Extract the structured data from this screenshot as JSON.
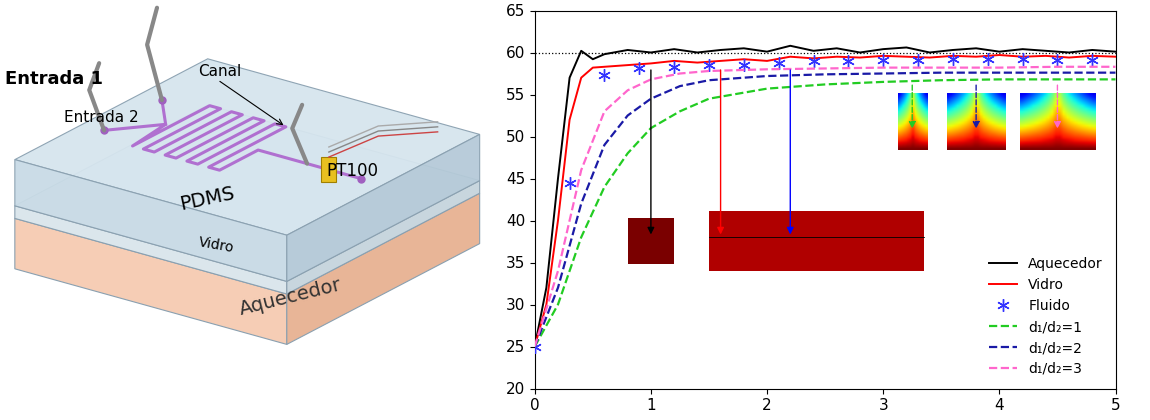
{
  "diagram": {
    "labels": {
      "entrada_1": "Entrada 1",
      "entrada_2": "Entrada 2",
      "canal": "Canal",
      "pdms": "PDMS",
      "pt100": "PT100",
      "vidro": "Vidro",
      "aquecedor": "Aquecedor"
    }
  },
  "chart_data": {
    "type": "line",
    "xlim": [
      0,
      5
    ],
    "xticks": [
      0,
      1,
      2,
      3,
      4,
      5
    ],
    "ylim": [
      20,
      65
    ],
    "yticks": [
      20,
      25,
      30,
      35,
      40,
      45,
      50,
      55,
      60,
      65
    ],
    "grid": false,
    "legend": "lower right",
    "reference_line": {
      "value": 60,
      "color": "#000000",
      "line_style": "dotted"
    },
    "series": [
      {
        "name": "Aquecedor",
        "color": "#000000",
        "line_style": "solid",
        "marker": "none",
        "x": [
          0,
          0.1,
          0.2,
          0.3,
          0.4,
          0.5,
          0.6,
          0.8,
          1.0,
          1.2,
          1.4,
          1.6,
          1.8,
          2.0,
          2.2,
          2.4,
          2.6,
          2.8,
          3.0,
          3.2,
          3.4,
          3.6,
          3.8,
          4.0,
          4.2,
          4.4,
          4.6,
          4.8,
          5.0
        ],
        "values": [
          25,
          32,
          45,
          57,
          60.2,
          59.2,
          59.8,
          60.3,
          60,
          60.4,
          60,
          60.3,
          60.5,
          60.1,
          60.8,
          60.2,
          60.5,
          60,
          60.4,
          60.6,
          60,
          60.3,
          60.5,
          60.1,
          60.4,
          60.2,
          60,
          60.3,
          60.1
        ]
      },
      {
        "name": "Vidro",
        "color": "#ff0000",
        "line_style": "solid",
        "marker": "none",
        "x": [
          0,
          0.1,
          0.2,
          0.3,
          0.4,
          0.5,
          0.6,
          0.8,
          1.0,
          1.2,
          1.4,
          1.6,
          1.8,
          2.0,
          2.2,
          2.4,
          2.6,
          2.8,
          3.0,
          3.2,
          3.4,
          3.6,
          3.8,
          4.0,
          4.2,
          4.4,
          4.6,
          4.8,
          5.0
        ],
        "values": [
          25,
          30,
          40,
          52,
          57,
          58.2,
          58.3,
          58.5,
          58.7,
          59,
          58.8,
          59,
          59.2,
          59,
          59.5,
          59.3,
          59.5,
          59.4,
          59.6,
          59.5,
          59.4,
          59.6,
          59.5,
          59.7,
          59.5,
          59.6,
          59.4,
          59.6,
          59.5
        ]
      },
      {
        "name": "Fluido",
        "color": "#3333ff",
        "line_style": "none",
        "marker": "asterisk",
        "x": [
          0,
          0.3,
          0.6,
          0.9,
          1.2,
          1.5,
          1.8,
          2.1,
          2.4,
          2.7,
          3.0,
          3.3,
          3.6,
          3.9,
          4.2,
          4.5,
          4.8
        ],
        "values": [
          25,
          44.5,
          57.3,
          58.1,
          58.3,
          58.5,
          58.5,
          58.8,
          59,
          59,
          59.1,
          59.1,
          59.2,
          59.2,
          59.2,
          59.1,
          59.1
        ]
      },
      {
        "name": "d₁/d₂=1",
        "color": "#22cc22",
        "line_style": "dashed",
        "marker": "none",
        "x": [
          0,
          0.2,
          0.4,
          0.6,
          0.8,
          1.0,
          1.25,
          1.5,
          2.0,
          2.5,
          3.0,
          3.5,
          4.0,
          4.5,
          5.0
        ],
        "values": [
          25,
          30,
          38,
          44,
          48,
          51,
          53,
          54.5,
          55.7,
          56.2,
          56.5,
          56.7,
          56.8,
          56.8,
          56.8
        ]
      },
      {
        "name": "d₁/d₂=2",
        "color": "#1a1aa6",
        "line_style": "dashed",
        "marker": "none",
        "x": [
          0,
          0.2,
          0.4,
          0.6,
          0.8,
          1.0,
          1.25,
          1.5,
          2.0,
          2.5,
          3.0,
          3.5,
          4.0,
          4.5,
          5.0
        ],
        "values": [
          25,
          32,
          42,
          49,
          52.5,
          54.5,
          56,
          56.7,
          57.2,
          57.4,
          57.5,
          57.6,
          57.6,
          57.6,
          57.6
        ]
      },
      {
        "name": "d₁/d₂=3",
        "color": "#ff66cc",
        "line_style": "dashed",
        "marker": "none",
        "x": [
          0,
          0.2,
          0.4,
          0.6,
          0.8,
          1.0,
          1.25,
          1.5,
          2.0,
          2.5,
          3.0,
          3.5,
          4.0,
          4.5,
          5.0
        ],
        "values": [
          25,
          34,
          46,
          53,
          55.5,
          56.8,
          57.5,
          57.8,
          58,
          58.1,
          58.2,
          58.2,
          58.2,
          58.3,
          58.3
        ]
      }
    ]
  }
}
